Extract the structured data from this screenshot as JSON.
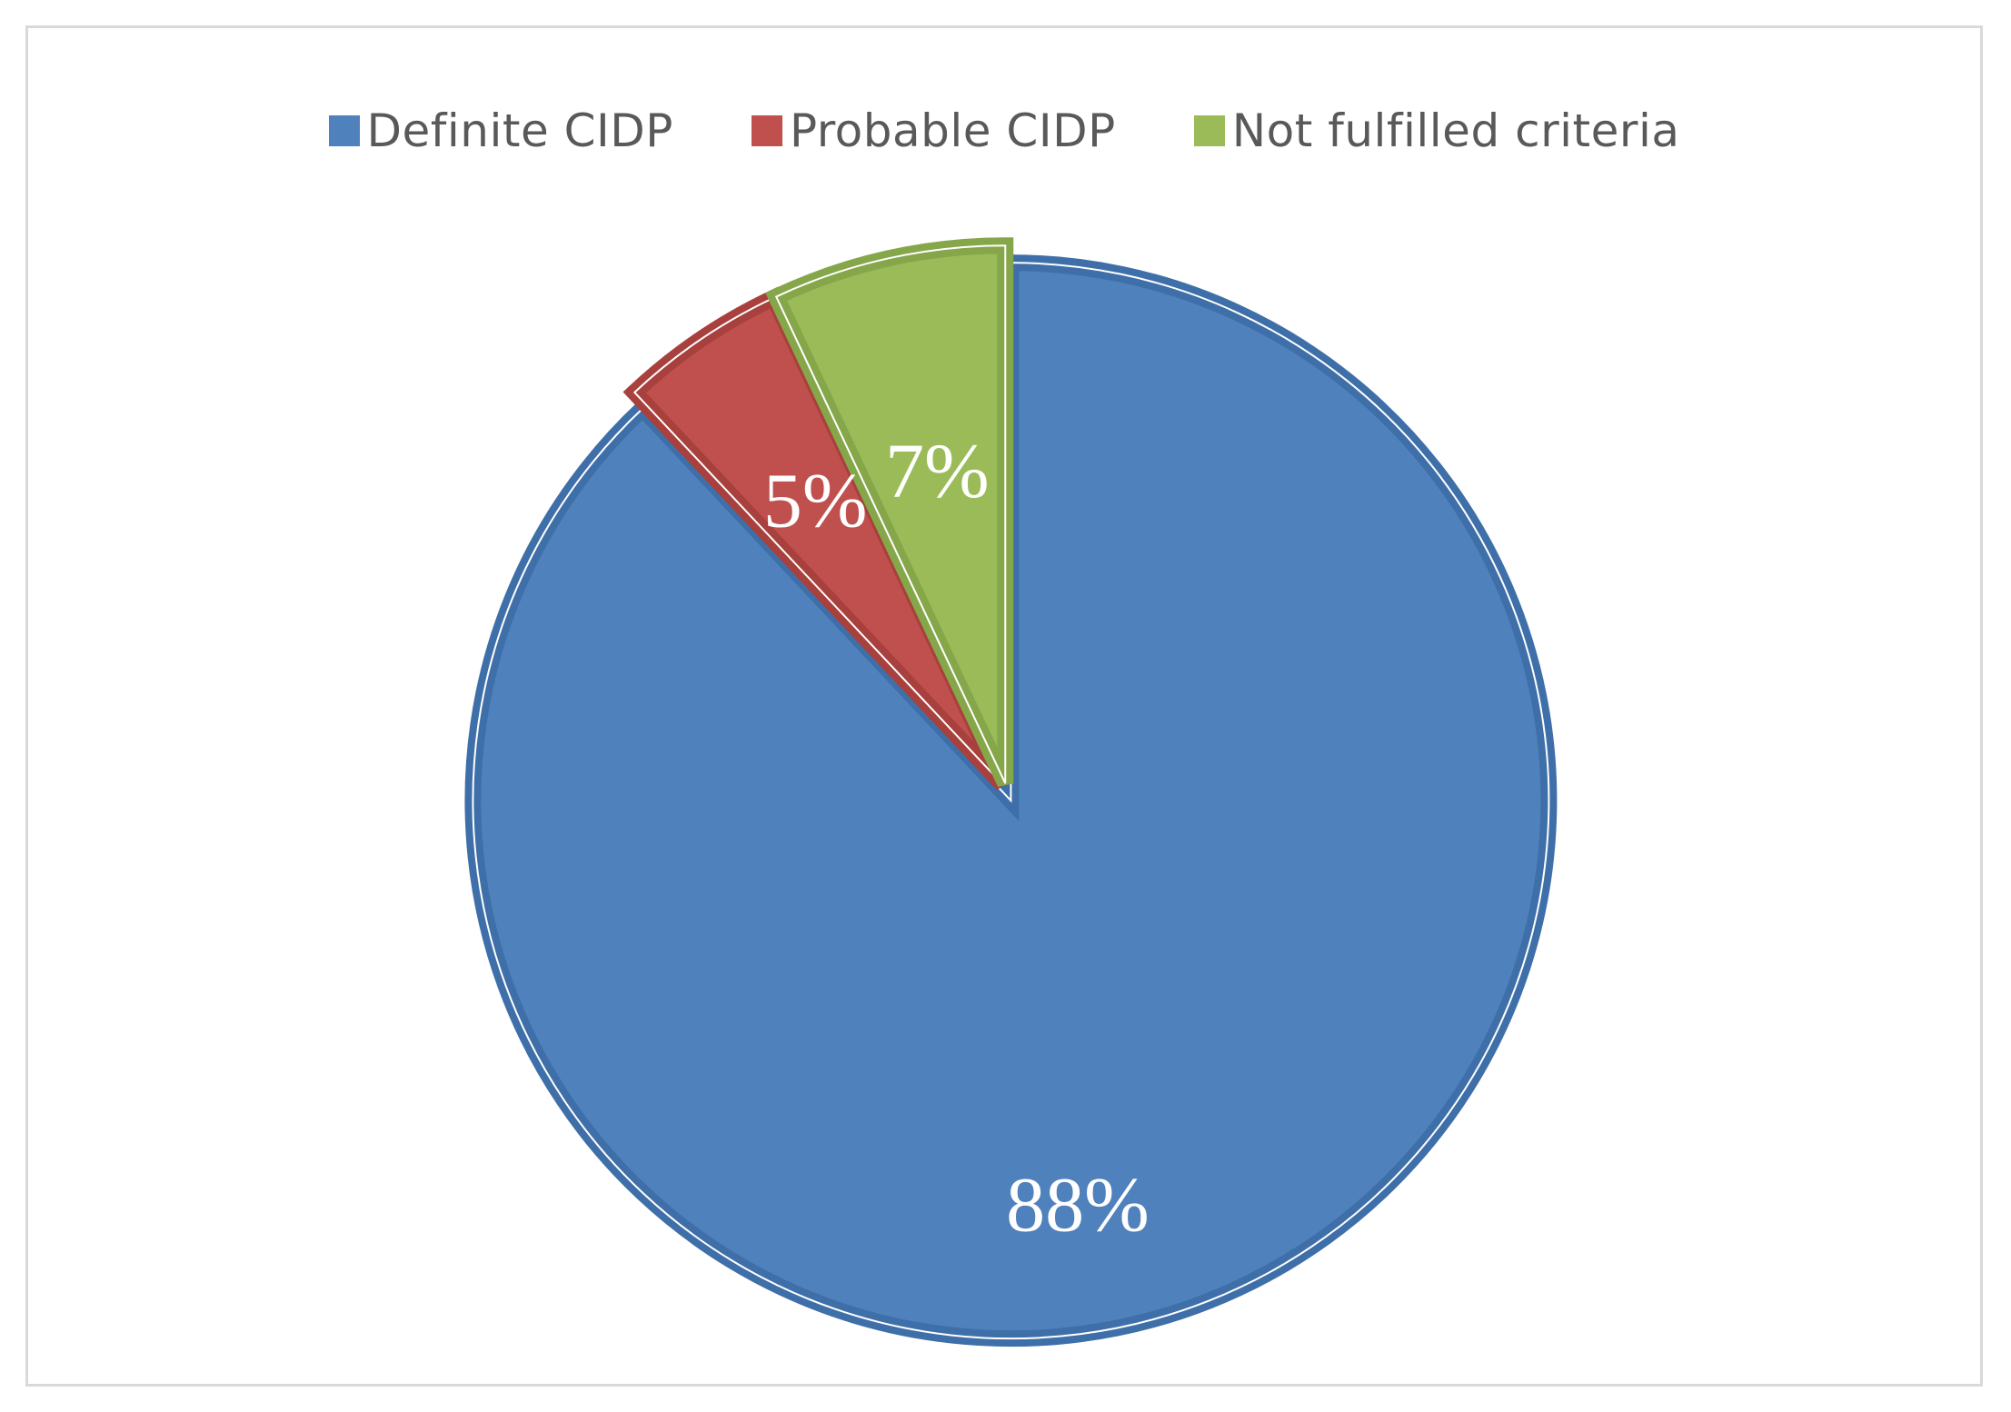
{
  "chart_data": {
    "type": "pie",
    "title": "",
    "slices": [
      {
        "label": "Definite CIDP",
        "value": 88,
        "value_label": "88%",
        "color": "#4f81bd",
        "edge_color": "#3f6fa8"
      },
      {
        "label": "Probable CIDP",
        "value": 5,
        "value_label": "5%",
        "color": "#c0504d",
        "edge_color": "#a8403d"
      },
      {
        "label": "Not fulfilled criteria",
        "value": 7,
        "value_label": "7%",
        "color": "#9bbb59",
        "edge_color": "#86a64a"
      }
    ],
    "legend_position": "top"
  }
}
